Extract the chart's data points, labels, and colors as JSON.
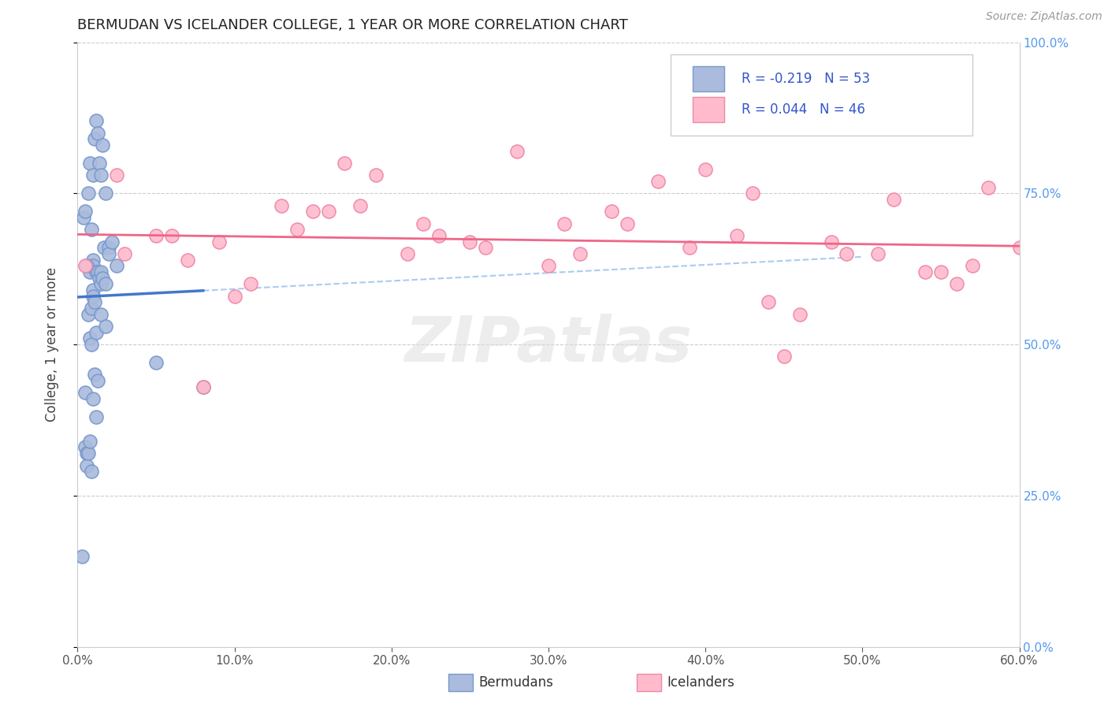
{
  "title": "BERMUDAN VS ICELANDER COLLEGE, 1 YEAR OR MORE CORRELATION CHART",
  "source": "Source: ZipAtlas.com",
  "xlabel_bermudans": "Bermudans",
  "xlabel_icelanders": "Icelanders",
  "ylabel": "College, 1 year or more",
  "xlim": [
    0.0,
    60.0
  ],
  "ylim": [
    0.0,
    100.0
  ],
  "R_blue": -0.219,
  "N_blue": 53,
  "R_pink": 0.044,
  "N_pink": 46,
  "blue_scatter_color": "#AABBDD",
  "blue_edge_color": "#7799CC",
  "pink_scatter_color": "#FFBBCC",
  "pink_edge_color": "#EE88AA",
  "trend_blue": "#4477CC",
  "trend_pink": "#EE6688",
  "dashed_line_color": "#AACCEE",
  "watermark": "ZIPatlas",
  "watermark_color": "#DDDDDD",
  "grid_color": "#CCCCCC",
  "right_tick_color": "#5599EE",
  "blue_scatter_x": [
    0.3,
    0.5,
    0.5,
    0.6,
    0.6,
    0.7,
    0.7,
    0.8,
    0.8,
    0.8,
    0.9,
    0.9,
    0.9,
    1.0,
    1.0,
    1.0,
    1.0,
    1.0,
    1.1,
    1.1,
    1.2,
    1.2,
    1.2,
    1.3,
    1.3,
    1.4,
    1.5,
    1.5,
    1.5,
    1.6,
    1.7,
    1.8,
    1.8,
    2.0,
    2.0,
    2.2,
    2.5,
    0.4,
    0.5,
    0.6,
    0.7,
    0.8,
    0.9,
    1.0,
    1.1,
    1.2,
    1.3,
    1.4,
    1.5,
    1.6,
    1.8,
    5.0,
    8.0
  ],
  "blue_scatter_y": [
    15,
    42,
    33,
    32,
    30,
    32,
    55,
    51,
    62,
    34,
    56,
    50,
    29,
    59,
    64,
    63,
    58,
    41,
    57,
    45,
    62,
    52,
    38,
    62,
    44,
    61,
    62,
    55,
    60,
    61,
    66,
    60,
    53,
    66,
    65,
    67,
    63,
    71,
    72,
    63,
    75,
    80,
    69,
    78,
    84,
    87,
    85,
    80,
    78,
    83,
    75,
    47,
    43
  ],
  "pink_scatter_x": [
    0.5,
    2.5,
    5.0,
    7.0,
    9.0,
    11.0,
    13.0,
    15.0,
    17.0,
    19.0,
    21.0,
    23.0,
    25.0,
    28.0,
    31.0,
    34.0,
    37.0,
    40.0,
    43.0,
    46.0,
    49.0,
    52.0,
    55.0,
    58.0,
    60.0,
    3.0,
    6.0,
    10.0,
    14.0,
    18.0,
    22.0,
    26.0,
    30.0,
    35.0,
    39.0,
    42.0,
    45.0,
    48.0,
    51.0,
    54.0,
    57.0,
    8.0,
    16.0,
    32.0,
    44.0,
    56.0
  ],
  "pink_scatter_y": [
    63,
    78,
    68,
    64,
    67,
    60,
    73,
    72,
    80,
    78,
    65,
    68,
    67,
    82,
    70,
    72,
    77,
    79,
    75,
    55,
    65,
    74,
    62,
    76,
    66,
    65,
    68,
    58,
    69,
    73,
    70,
    66,
    63,
    70,
    66,
    68,
    48,
    67,
    65,
    62,
    63,
    43,
    72,
    65,
    57,
    60
  ]
}
